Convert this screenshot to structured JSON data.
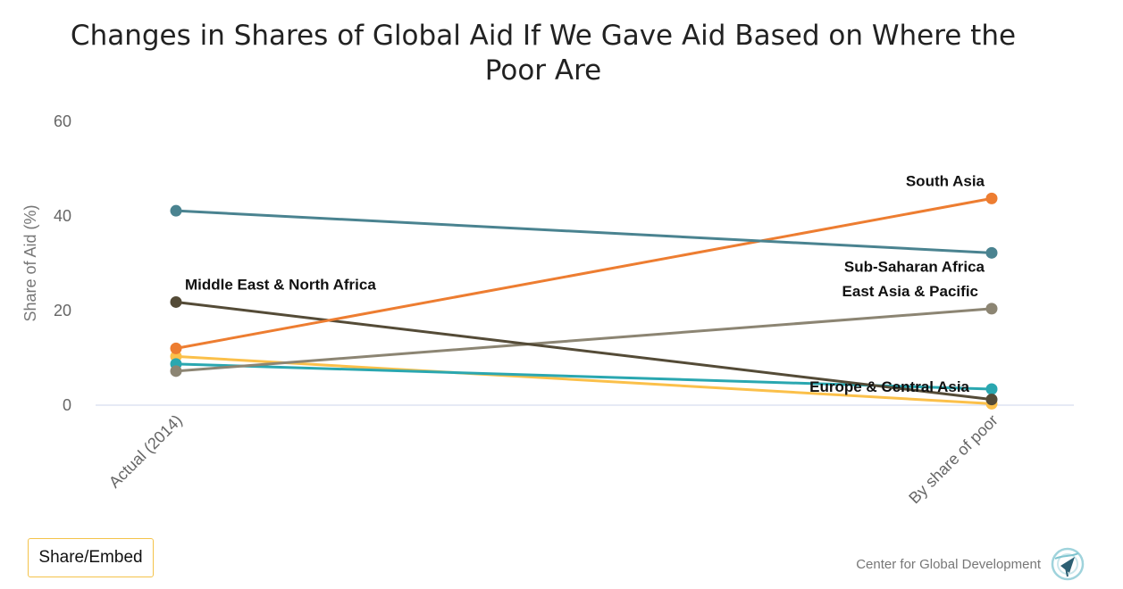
{
  "chart_data": {
    "type": "line",
    "title_lines": [
      "Changes in Shares of Global Aid If We Gave Aid Based on Where the",
      "Poor Are"
    ],
    "categories": [
      "Actual (2014)",
      "By share of poor"
    ],
    "ylabel": "Share of Aid (%)",
    "ylim": [
      0,
      60
    ],
    "yticks": [
      0,
      20,
      40,
      60
    ],
    "grid": false,
    "series": [
      {
        "label": "Sub-Saharan Africa",
        "color": "#4a8390",
        "values": [
          41.1,
          32.2
        ],
        "label_at": "end"
      },
      {
        "label": "South Asia",
        "color": "#ed7d31",
        "values": [
          12.0,
          43.7
        ],
        "label_at": "end"
      },
      {
        "label": "East Asia & Pacific",
        "color": "#8c8573",
        "values": [
          7.2,
          20.4
        ],
        "label_at": "end"
      },
      {
        "label": "Middle East & North Africa",
        "color": "#544b37",
        "values": [
          21.8,
          1.2
        ],
        "label_at": "start"
      },
      {
        "label": "Europe & Central Asia",
        "color": "#2aa7b0",
        "values": [
          8.7,
          3.4
        ],
        "label_at": "end"
      },
      {
        "label": "",
        "color": "#fbc04a",
        "values": [
          10.3,
          0.3
        ],
        "label_at": "none"
      }
    ]
  },
  "share_button_label": "Share/Embed",
  "credit_text": "Center for Global Development",
  "credit_icon": "cgd-globe-logo-icon"
}
